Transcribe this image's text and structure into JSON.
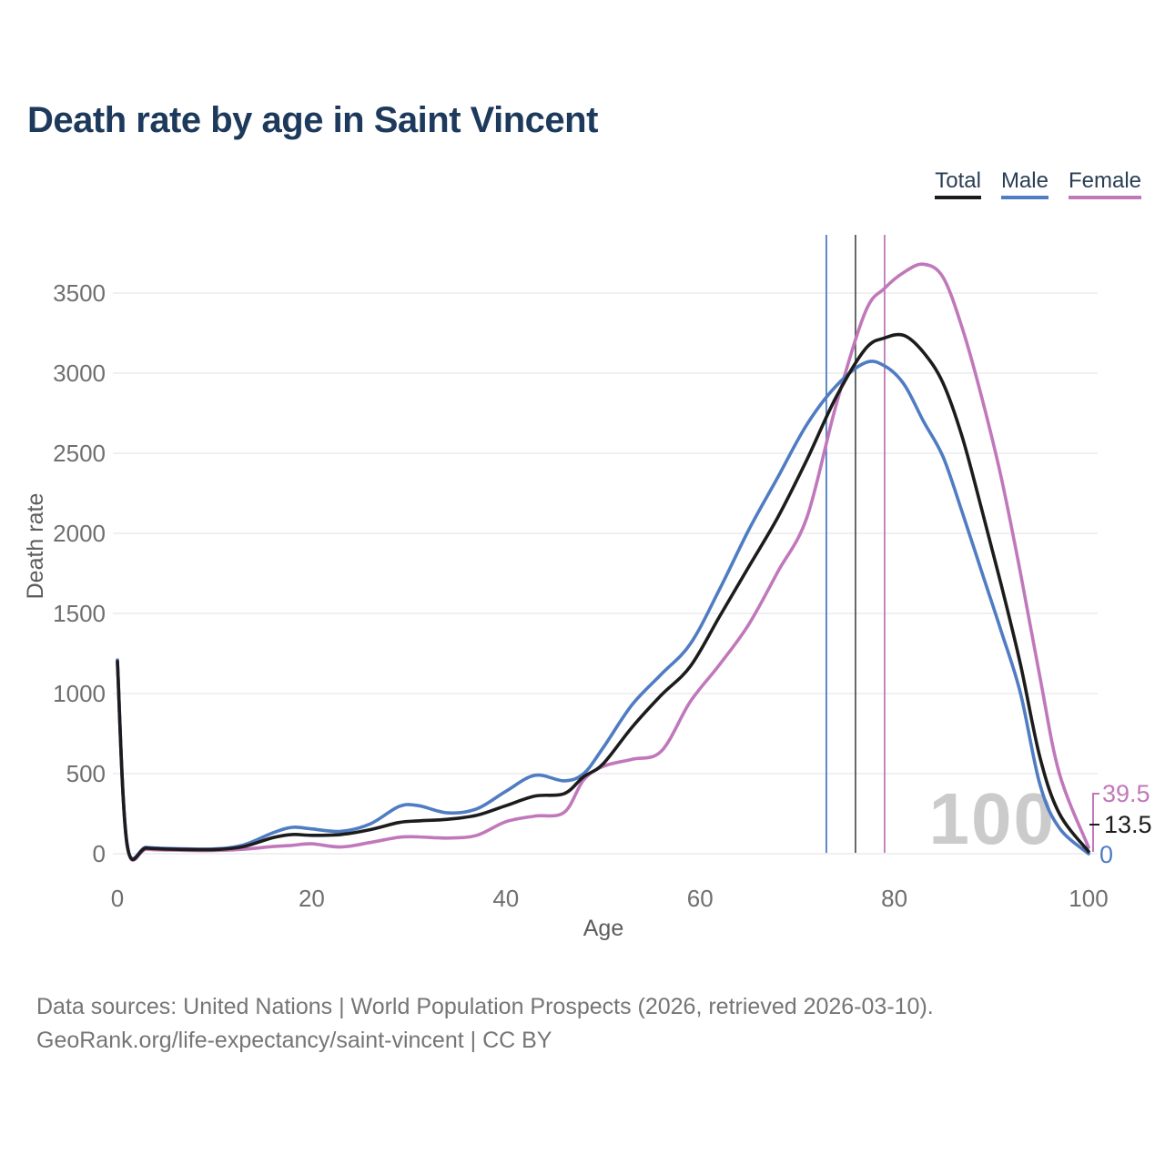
{
  "header": {
    "title": "Death rate by age in Saint Vincent"
  },
  "legend": {
    "items": [
      {
        "label": "Total",
        "color": "#1c1c1c"
      },
      {
        "label": "Male",
        "color": "#4f7cc2"
      },
      {
        "label": "Female",
        "color": "#c078bb"
      }
    ]
  },
  "chart_data": {
    "type": "line",
    "title": "Death rate by age in Saint Vincent",
    "xlabel": "Age",
    "ylabel": "Death rate",
    "xlim": [
      0,
      100
    ],
    "ylim": [
      0,
      3500
    ],
    "xticks": [
      0,
      20,
      40,
      60,
      80,
      100
    ],
    "yticks": [
      0,
      500,
      1000,
      1500,
      2000,
      2500,
      3000,
      3500
    ],
    "grid": "horizontal",
    "legend_position": "top-right",
    "watermark": "100",
    "x": [
      0,
      1,
      3,
      6,
      10,
      13,
      16,
      18,
      20,
      23,
      26,
      29,
      31,
      34,
      37,
      40,
      43,
      46,
      48,
      50,
      53,
      56,
      59,
      62,
      65,
      68,
      71,
      74,
      77,
      79,
      81,
      83,
      85,
      87,
      89,
      91,
      93,
      95,
      97,
      100
    ],
    "series": [
      {
        "name": "Total",
        "color": "#1c1c1c",
        "values": [
          1200,
          55,
          35,
          28,
          26,
          45,
          100,
          120,
          115,
          120,
          150,
          195,
          205,
          215,
          240,
          300,
          360,
          375,
          480,
          560,
          790,
          990,
          1170,
          1480,
          1790,
          2100,
          2460,
          2850,
          3150,
          3220,
          3235,
          3130,
          2940,
          2600,
          2150,
          1680,
          1180,
          600,
          250,
          13.5
        ]
      },
      {
        "name": "Male",
        "color": "#4f7cc2",
        "values": [
          1210,
          60,
          40,
          32,
          30,
          55,
          130,
          165,
          155,
          140,
          185,
          295,
          300,
          255,
          280,
          390,
          490,
          455,
          500,
          660,
          930,
          1120,
          1310,
          1650,
          2020,
          2350,
          2680,
          2920,
          3065,
          3045,
          2930,
          2700,
          2480,
          2130,
          1760,
          1390,
          1000,
          430,
          160,
          0
        ]
      },
      {
        "name": "Female",
        "color": "#c078bb",
        "values": [
          1185,
          50,
          28,
          22,
          20,
          28,
          45,
          52,
          62,
          42,
          70,
          103,
          105,
          98,
          115,
          200,
          235,
          258,
          460,
          545,
          590,
          640,
          950,
          1180,
          1430,
          1760,
          2100,
          2800,
          3380,
          3530,
          3630,
          3680,
          3600,
          3280,
          2850,
          2350,
          1750,
          1100,
          500,
          39.5
        ]
      }
    ],
    "vertical_markers": [
      {
        "name": "male-marker",
        "age": 73,
        "color": "#4f7cc2"
      },
      {
        "name": "total-marker",
        "age": 76,
        "color": "#55585e"
      },
      {
        "name": "female-marker",
        "age": 79,
        "color": "#c078bb"
      }
    ],
    "end_labels": [
      {
        "series": "Female",
        "text": "39.5",
        "color": "#c078bb"
      },
      {
        "series": "Total",
        "text": "13.5",
        "color": "#1c1c1c"
      },
      {
        "series": "Male",
        "text": "0",
        "color": "#4f7cc2"
      }
    ]
  },
  "source": {
    "line1": "Data sources: United Nations | World Population Prospects (2026, retrieved 2026-03-10).",
    "line2": "GeoRank.org/life-expectancy/saint-vincent | CC BY"
  }
}
